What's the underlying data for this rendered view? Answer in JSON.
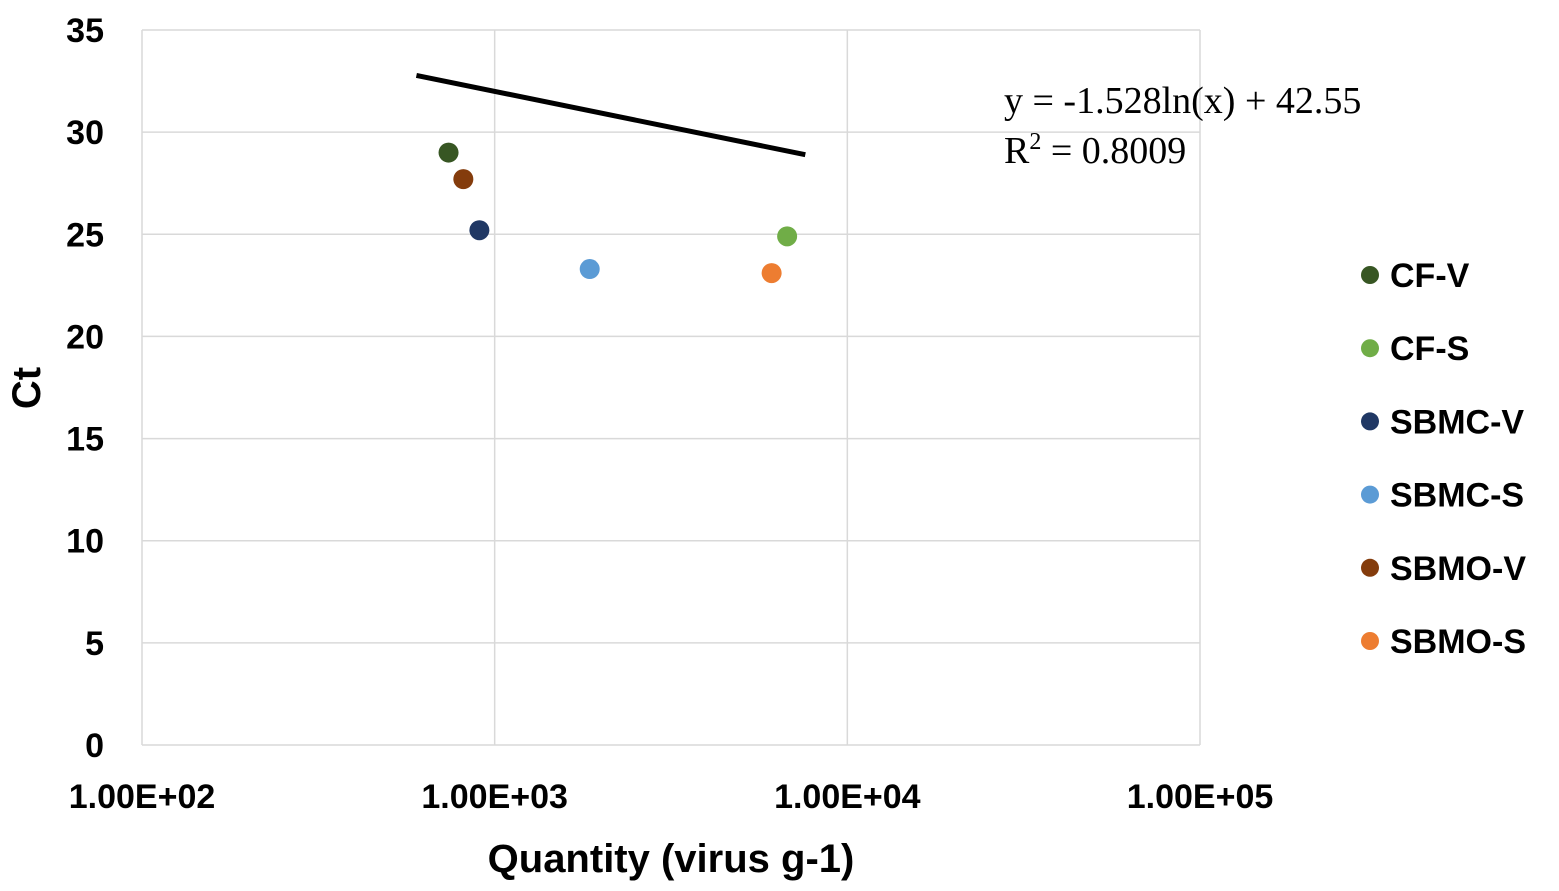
{
  "chart_data": {
    "type": "scatter",
    "title": "",
    "xlabel": "Quantity (virus g-1)",
    "ylabel": "Ct",
    "x_scale": "log",
    "xlim": [
      100,
      100000
    ],
    "ylim": [
      0,
      35
    ],
    "x_ticks": [
      100,
      1000,
      10000,
      100000
    ],
    "x_tick_labels": [
      "1.00E+02",
      "1.00E+03",
      "1.00E+04",
      "1.00E+05"
    ],
    "y_ticks": [
      0,
      5,
      10,
      15,
      20,
      25,
      30,
      35
    ],
    "y_tick_labels": [
      "0",
      "5",
      "10",
      "15",
      "20",
      "25",
      "30",
      "35"
    ],
    "grid": true,
    "legend_position": "right",
    "series": [
      {
        "name": "CF-V",
        "color": "#375623",
        "points": [
          {
            "x": 740,
            "y": 29.0
          }
        ]
      },
      {
        "name": "CF-S",
        "color": "#70AD47",
        "points": [
          {
            "x": 6750,
            "y": 24.9
          }
        ]
      },
      {
        "name": "SBMC-V",
        "color": "#203864",
        "points": [
          {
            "x": 905,
            "y": 25.2
          }
        ]
      },
      {
        "name": "SBMC-S",
        "color": "#5B9BD5",
        "points": [
          {
            "x": 1860,
            "y": 23.3
          }
        ]
      },
      {
        "name": "SBMO-V",
        "color": "#843C0C",
        "points": [
          {
            "x": 815,
            "y": 27.7
          }
        ]
      },
      {
        "name": "SBMO-S",
        "color": "#ED7D31",
        "points": [
          {
            "x": 6100,
            "y": 23.1
          }
        ]
      }
    ],
    "trendline": {
      "type": "logarithmic",
      "color": "#000000",
      "x_start": 600,
      "x_end": 7600,
      "slope": -1.528,
      "intercept": 42.55,
      "equation_line": "y = -1.528ln(x) + 42.55",
      "r2_prefix": "R",
      "r2_sup": "2",
      "r2_value": " = 0.8009"
    },
    "gridline_color": "#D9D9D9"
  }
}
